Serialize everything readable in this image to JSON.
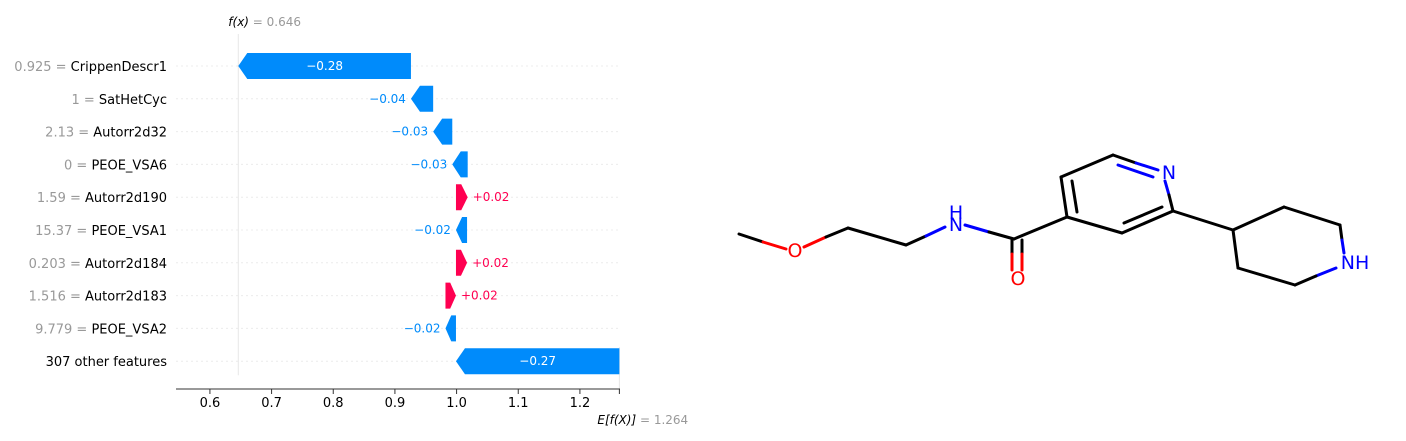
{
  "chart_data": {
    "type": "waterfall",
    "fx_label": "f(x)",
    "fx_value": "0.646",
    "ex_label": "E[f(X)]",
    "ex_value": "1.264",
    "xlim": [
      0.545,
      1.265
    ],
    "xticks": [
      0.6,
      0.7,
      0.8,
      0.9,
      1.0,
      1.1,
      1.2
    ],
    "xtick_labels": [
      "0.6",
      "0.7",
      "0.8",
      "0.9",
      "1.0",
      "1.1",
      "1.2"
    ],
    "features": [
      {
        "value_text": "0.925",
        "name": "CrippenDescr1",
        "start": 0.926,
        "end": 0.646,
        "label": "−0.28"
      },
      {
        "value_text": "1",
        "name": "SatHetCyc",
        "start": 0.962,
        "end": 0.926,
        "label": "−0.04"
      },
      {
        "value_text": "2.13",
        "name": "Autorr2d32",
        "start": 0.993,
        "end": 0.962,
        "label": "−0.03"
      },
      {
        "value_text": "0",
        "name": "PEOE_VSA6",
        "start": 1.018,
        "end": 0.993,
        "label": "−0.03"
      },
      {
        "value_text": "1.59",
        "name": "Autorr2d190",
        "start": 0.999,
        "end": 1.018,
        "label": "+0.02"
      },
      {
        "value_text": "15.37",
        "name": "PEOE_VSA1",
        "start": 1.017,
        "end": 0.999,
        "label": "−0.02"
      },
      {
        "value_text": "0.203",
        "name": "Autorr2d184",
        "start": 0.999,
        "end": 1.017,
        "label": "+0.02"
      },
      {
        "value_text": "1.516",
        "name": "Autorr2d183",
        "start": 0.982,
        "end": 0.999,
        "label": "+0.02"
      },
      {
        "value_text": "9.779",
        "name": "PEOE_VSA2",
        "start": 0.999,
        "end": 0.982,
        "label": "−0.02"
      },
      {
        "value_text": "",
        "name": "307 other features",
        "start": 1.264,
        "end": 0.999,
        "label": "−0.27"
      }
    ]
  },
  "molecule": {
    "atom_labels": {
      "N_ring": "N",
      "NH_amide": "H",
      "N_amide": "N",
      "O_ether": "O",
      "O_carbonyl": "O",
      "NH_pip": "NH"
    }
  },
  "colors": {
    "negative": "#008bfb",
    "positive": "#ff0051",
    "bond": "#000000",
    "nitrogen": "#0000ff",
    "oxygen": "#ff0000"
  }
}
